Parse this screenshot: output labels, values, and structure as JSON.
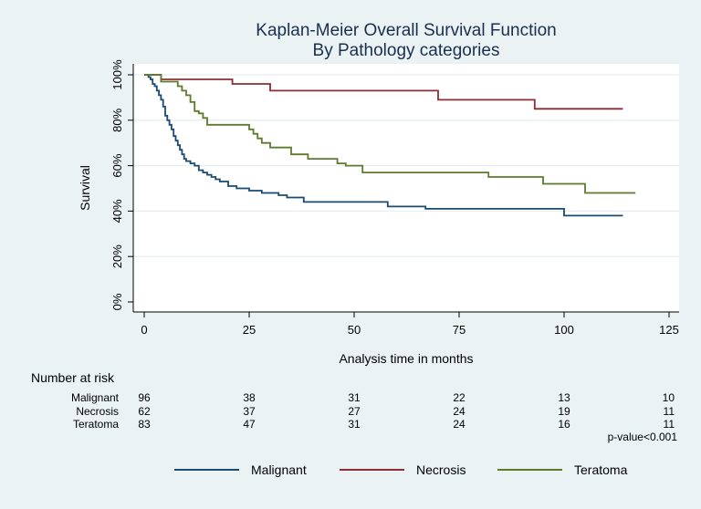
{
  "chart_data": {
    "type": "line",
    "title": [
      "Kaplan-Meier Overall Survival Function",
      "By Pathology categories"
    ],
    "xlabel": "Analysis time in months",
    "ylabel": "Survival",
    "xlim": [
      0,
      125
    ],
    "ylim": [
      0,
      1
    ],
    "xticks": [
      "0",
      "25",
      "50",
      "75",
      "100",
      "125"
    ],
    "yticks": [
      "0%",
      "20%",
      "40%",
      "60%",
      "80%",
      "100%"
    ],
    "grid": true,
    "legend_position": "bottom",
    "series": [
      {
        "name": "Malignant",
        "color": "#1a4a72",
        "x": [
          0,
          1,
          1.5,
          2,
          2.5,
          3,
          3.5,
          4,
          4.5,
          5,
          5.5,
          6,
          6.5,
          7,
          7.5,
          8,
          8.5,
          9,
          9.5,
          10,
          11,
          12,
          13,
          14,
          15,
          16,
          17,
          18,
          20,
          22,
          25,
          28,
          32,
          34,
          38,
          45,
          52,
          58,
          67,
          80,
          90,
          100,
          114
        ],
        "y": [
          1.0,
          0.99,
          0.98,
          0.96,
          0.95,
          0.93,
          0.91,
          0.89,
          0.86,
          0.82,
          0.8,
          0.78,
          0.76,
          0.73,
          0.71,
          0.69,
          0.67,
          0.65,
          0.63,
          0.62,
          0.61,
          0.6,
          0.58,
          0.57,
          0.56,
          0.55,
          0.54,
          0.53,
          0.51,
          0.5,
          0.49,
          0.48,
          0.47,
          0.46,
          0.44,
          0.44,
          0.44,
          0.42,
          0.41,
          0.41,
          0.41,
          0.38,
          0.38
        ]
      },
      {
        "name": "Necrosis",
        "color": "#8b2e33",
        "x": [
          0,
          4,
          21,
          30,
          70,
          93,
          114
        ],
        "y": [
          1.0,
          0.98,
          0.96,
          0.93,
          0.89,
          0.85,
          0.85
        ]
      },
      {
        "name": "Teratoma",
        "color": "#5e7a2c",
        "x": [
          0,
          4,
          8,
          9,
          10,
          11,
          12,
          13,
          14,
          15,
          25,
          26,
          27,
          28,
          30,
          35,
          39,
          46,
          48,
          52,
          82,
          95,
          105,
          117
        ],
        "y": [
          1.0,
          0.97,
          0.95,
          0.93,
          0.91,
          0.88,
          0.84,
          0.83,
          0.81,
          0.78,
          0.76,
          0.74,
          0.72,
          0.7,
          0.68,
          0.65,
          0.63,
          0.61,
          0.6,
          0.57,
          0.55,
          0.52,
          0.48,
          0.48
        ]
      }
    ],
    "number_at_risk": {
      "label": "Number at risk",
      "groups": [
        {
          "name": "Malignant",
          "counts": [
            "96",
            "38",
            "31",
            "22",
            "13",
            "10"
          ]
        },
        {
          "name": "Necrosis",
          "counts": [
            "62",
            "37",
            "27",
            "24",
            "19",
            "11"
          ]
        },
        {
          "name": "Teratoma",
          "counts": [
            "83",
            "47",
            "31",
            "24",
            "16",
            "11"
          ]
        }
      ]
    },
    "annotation": "p-value<0.001"
  }
}
